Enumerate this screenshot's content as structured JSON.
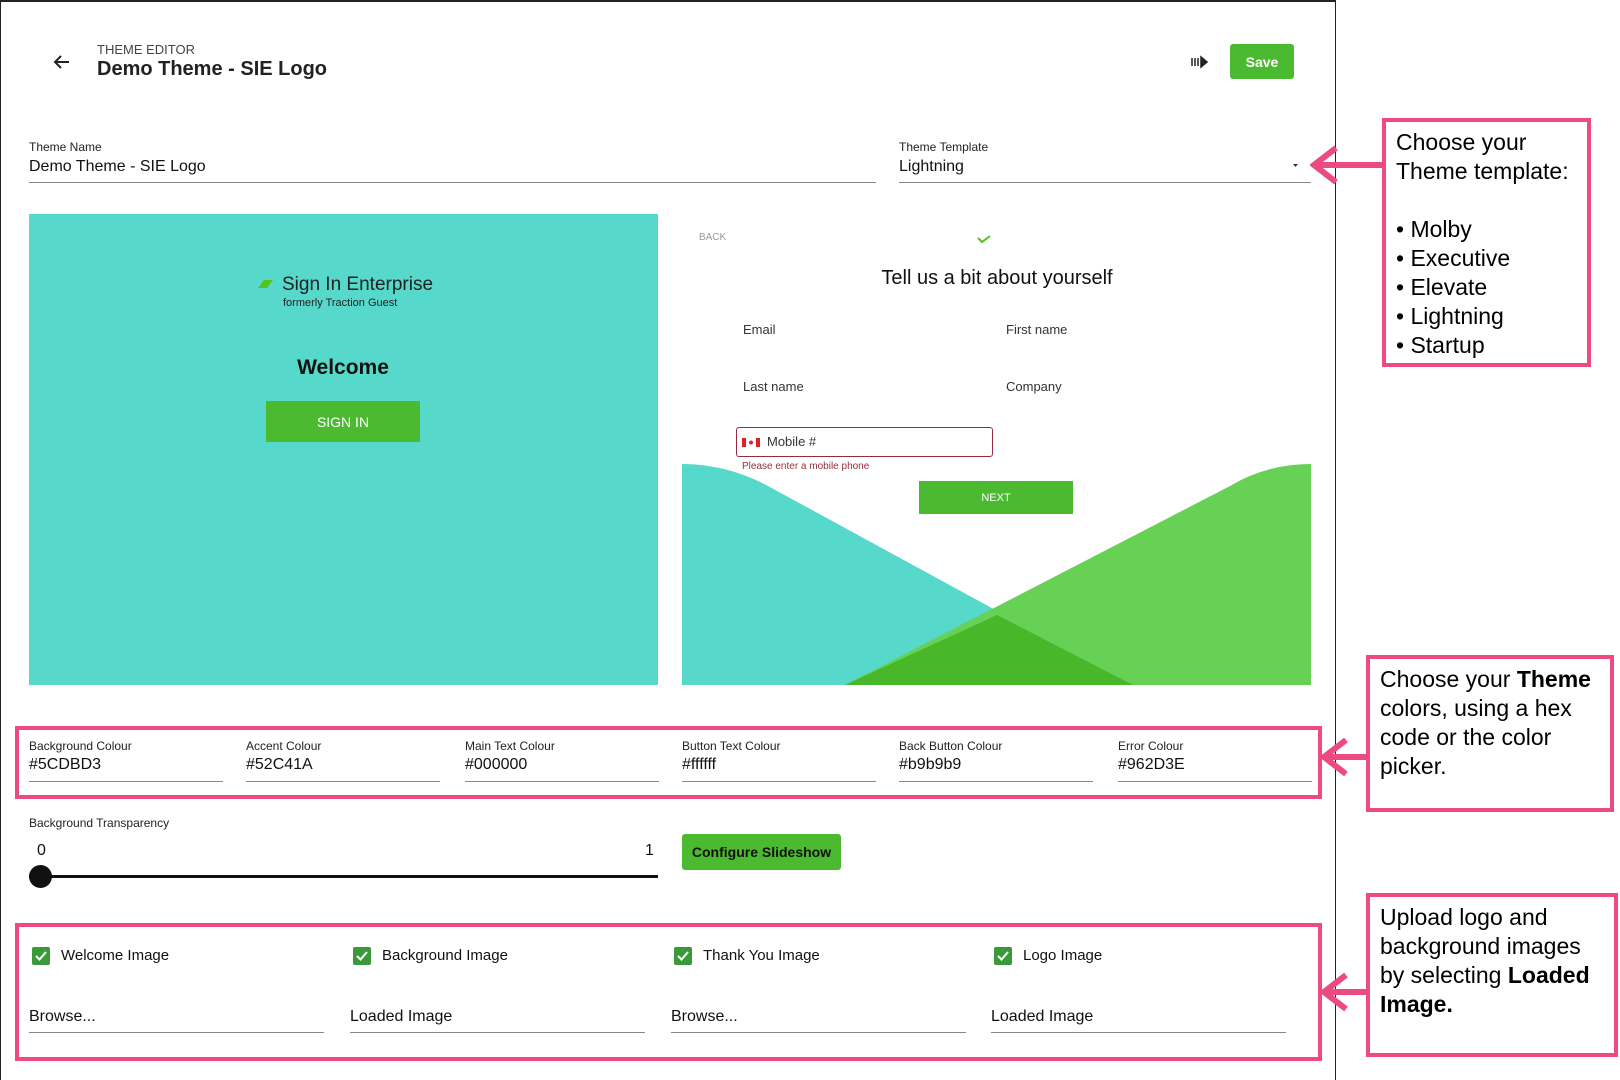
{
  "header": {
    "section": "THEME EDITOR",
    "title": "Demo Theme - SIE Logo",
    "save_button": "Save"
  },
  "form": {
    "theme_name": {
      "label": "Theme Name",
      "value": "Demo Theme - SIE Logo"
    },
    "theme_template": {
      "label": "Theme Template",
      "value": "Lightning"
    }
  },
  "preview_welcome": {
    "logo": "Sign In Enterprise",
    "logo_sub": "formerly Traction Guest",
    "heading": "Welcome",
    "button": "SIGN IN"
  },
  "preview_form": {
    "back": "BACK",
    "heading": "Tell us a bit about yourself",
    "fields": [
      "Email",
      "First name",
      "Last name",
      "Company"
    ],
    "mobile_placeholder": "Mobile #",
    "error": "Please enter a mobile phone",
    "button": "NEXT"
  },
  "colors": [
    {
      "label": "Background Colour",
      "value": "#5CDBD3"
    },
    {
      "label": "Accent Colour",
      "value": "#52C41A"
    },
    {
      "label": "Main Text Colour",
      "value": "#000000"
    },
    {
      "label": "Button Text Colour",
      "value": "#ffffff"
    },
    {
      "label": "Back Button Colour",
      "value": "#b9b9b9"
    },
    {
      "label": "Error Colour",
      "value": "#962D3E"
    }
  ],
  "transparency": {
    "label": "Background Transparency",
    "min": 0,
    "max": 1
  },
  "slideshow_button": "Configure Slideshow",
  "images": [
    {
      "label": "Welcome Image",
      "field": "Browse..."
    },
    {
      "label": "Background Image",
      "field": "Loaded Image"
    },
    {
      "label": "Thank You Image",
      "field": "Browse..."
    },
    {
      "label": "Logo Image",
      "field": "Loaded Image"
    }
  ],
  "annotations": [
    {
      "runs": [
        {
          "text": "Choose your Theme template:",
          "bold": false
        }
      ],
      "bullets": [
        "Molby",
        "Executive",
        "Elevate",
        "Lightning",
        "Startup"
      ]
    },
    {
      "runs": [
        {
          "text": "Choose your ",
          "bold": false
        },
        {
          "text": "Theme",
          "bold": true
        },
        {
          "text": " colors, using a hex code or the color picker.",
          "bold": false
        }
      ]
    },
    {
      "runs": [
        {
          "text": "Upload logo and background images by selecting ",
          "bold": false
        },
        {
          "text": "Loaded Image.",
          "bold": true
        }
      ]
    }
  ]
}
